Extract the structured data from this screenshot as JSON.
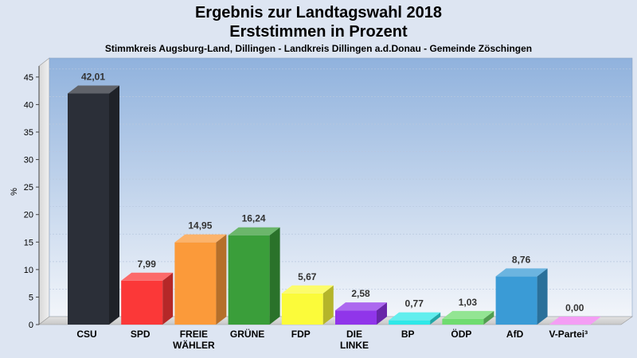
{
  "chart_data": {
    "type": "bar",
    "title": "Ergebnis zur Landtagswahl 2018",
    "title_line2": "Erststimmen in Prozent",
    "subtitle": "Stimmkreis Augsburg-Land, Dillingen - Landkreis Dillingen a.d.Donau - Gemeinde Zöschingen",
    "ylabel": "%",
    "ylim": [
      0,
      47
    ],
    "yticks": [
      0,
      5,
      10,
      15,
      20,
      25,
      30,
      35,
      40,
      45
    ],
    "grid": true,
    "bars": [
      {
        "category": [
          "CSU"
        ],
        "value": 42.01,
        "label": "42,01",
        "color": "#2b2f38"
      },
      {
        "category": [
          "SPD"
        ],
        "value": 7.99,
        "label": "7,99",
        "color": "#fb3838"
      },
      {
        "category": [
          "FREIE",
          "WÄHLER"
        ],
        "value": 14.95,
        "label": "14,95",
        "color": "#fb9a3a"
      },
      {
        "category": [
          "GRÜNE"
        ],
        "value": 16.24,
        "label": "16,24",
        "color": "#3a9e3a"
      },
      {
        "category": [
          "FDP"
        ],
        "value": 5.67,
        "label": "5,67",
        "color": "#fbfb3a"
      },
      {
        "category": [
          "DIE",
          "LINKE"
        ],
        "value": 2.58,
        "label": "2,58",
        "color": "#9035ea"
      },
      {
        "category": [
          "BP"
        ],
        "value": 0.77,
        "label": "0,77",
        "color": "#2ee8e8"
      },
      {
        "category": [
          "ÖDP"
        ],
        "value": 1.03,
        "label": "1,03",
        "color": "#6fdc6f"
      },
      {
        "category": [
          "AfD"
        ],
        "value": 8.76,
        "label": "8,76",
        "color": "#3a9bd6"
      },
      {
        "category": [
          "V-Partei³"
        ],
        "value": 0.0,
        "label": "0,00",
        "color": "#f07ef0"
      }
    ]
  }
}
